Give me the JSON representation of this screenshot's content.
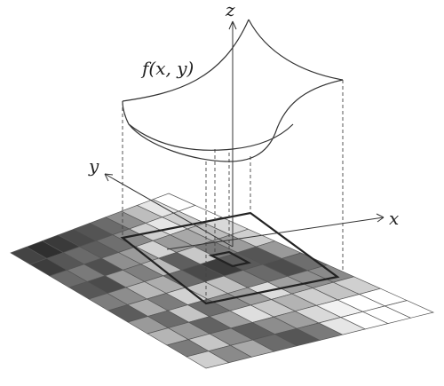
{
  "labels": {
    "function": "f(x, y)",
    "axis_x": "x",
    "axis_y": "y",
    "axis_z": "z"
  },
  "grid": {
    "rows": 10,
    "cols": 10,
    "shades": [
      [
        "#ffffff",
        "#ffffff",
        "#d9d9d9",
        "#cfcfcf",
        "#9a9a9a",
        "#6e6e6e",
        "#8a8a8a",
        "#d0d0d0",
        "#ffffff",
        "#ffffff"
      ],
      [
        "#e6e6e6",
        "#cfcfcf",
        "#bdbdbd",
        "#9c9c9c",
        "#555555",
        "#4d4d4d",
        "#8e8e8e",
        "#c4c4c4",
        "#ffffff",
        "#ffffff"
      ],
      [
        "#bdbdbd",
        "#e6e6e6",
        "#a8a8a8",
        "#7a7a7a",
        "#5a5a5a",
        "#6a6a6a",
        "#a0a0a0",
        "#cfcfcf",
        "#f2f2f2",
        "#ffffff"
      ],
      [
        "#8f8f8f",
        "#cfcfcf",
        "#9a9a9a",
        "#c8c8c8",
        "#3c3c3c",
        "#7f7f7f",
        "#dcdcdc",
        "#b3b3b3",
        "#d9d9d9",
        "#e6e6e6"
      ],
      [
        "#6b6b6b",
        "#8a8a8a",
        "#d2d2d2",
        "#5e5e5e",
        "#4a4a4a",
        "#bfbfbf",
        "#9f9f9f",
        "#c9c9c9",
        "#a0a0a0",
        "#7a7a7a"
      ],
      [
        "#545454",
        "#6f6f6f",
        "#9b9b9b",
        "#b9b9b9",
        "#6a6a6a",
        "#c4c4c4",
        "#8c8c8c",
        "#dedede",
        "#8d8d8d",
        "#565656"
      ],
      [
        "#4a4a4a",
        "#5d5d5d",
        "#8f8f8f",
        "#7f7f7f",
        "#adadad",
        "#d1d1d1",
        "#6c6c6c",
        "#9e9e9e",
        "#5d5d5d",
        "#6b6b6b"
      ],
      [
        "#3a3a3a",
        "#6a6a6a",
        "#4f4f4f",
        "#9c9c9c",
        "#b8b8b8",
        "#7c7c7c",
        "#c5c5c5",
        "#626262",
        "#8a8a8a",
        "#a9a9a9"
      ],
      [
        "#2f2f2f",
        "#565656",
        "#7a7a7a",
        "#4b4b4b",
        "#8d8d8d",
        "#adadad",
        "#6b6b6b",
        "#999999",
        "#c6c6c6",
        "#8a8a8a"
      ],
      [
        "#444444",
        "#3d3d3d",
        "#6a6a6a",
        "#575757",
        "#7d7d7d",
        "#5c5c5c",
        "#9a9a9a",
        "#b5b5b5",
        "#7b7b7b",
        "#cfcfcf"
      ]
    ]
  },
  "colors": {
    "line": "#333333",
    "grid_line": "#555555"
  }
}
